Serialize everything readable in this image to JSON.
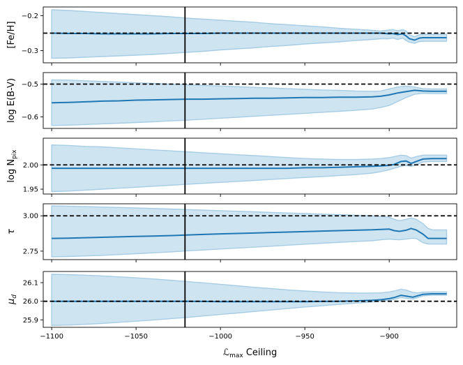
{
  "chart_data": {
    "type": "line",
    "xlabel_main": "ℒ",
    "xlabel_sub": "max",
    "xlabel_rest": " Ceiling",
    "xlim": [
      -1105,
      -860
    ],
    "xticks": [
      -1100,
      -1050,
      -1000,
      -950,
      -900
    ],
    "xtick_labels": [
      "−1100",
      "−1050",
      "−1000",
      "−950",
      "−900"
    ],
    "vline_x": -1021,
    "colors": {
      "line": "#1f77b4",
      "band": "#a6cde5",
      "reference": "#000000"
    },
    "panels": [
      {
        "name": "feh",
        "ylabel_main": "[Fe/H]",
        "ylabel_sub": "",
        "ylabel_math": false,
        "ylim": [
          -0.335,
          -0.175
        ],
        "yticks": [
          -0.3,
          -0.2
        ],
        "ytick_labels": [
          "−0.3",
          "−0.2"
        ],
        "truth": -0.25,
        "series": {
          "x": [
            -1100,
            -1090,
            -1080,
            -1070,
            -1060,
            -1050,
            -1040,
            -1030,
            -1020,
            -1010,
            -1000,
            -990,
            -980,
            -970,
            -960,
            -950,
            -940,
            -930,
            -920,
            -910,
            -905,
            -900,
            -898,
            -895,
            -892,
            -890,
            -888,
            -885,
            -882,
            -880,
            -875,
            -870,
            -866
          ],
          "mean": [
            -0.25,
            -0.251,
            -0.251,
            -0.252,
            -0.252,
            -0.252,
            -0.252,
            -0.251,
            -0.251,
            -0.251,
            -0.25,
            -0.25,
            -0.25,
            -0.25,
            -0.25,
            -0.25,
            -0.25,
            -0.25,
            -0.25,
            -0.25,
            -0.25,
            -0.252,
            -0.251,
            -0.254,
            -0.252,
            -0.258,
            -0.266,
            -0.27,
            -0.264,
            -0.263,
            -0.263,
            -0.263,
            -0.263
          ],
          "lower": [
            -0.322,
            -0.321,
            -0.319,
            -0.317,
            -0.315,
            -0.313,
            -0.311,
            -0.308,
            -0.305,
            -0.302,
            -0.298,
            -0.295,
            -0.292,
            -0.288,
            -0.285,
            -0.281,
            -0.278,
            -0.275,
            -0.271,
            -0.268,
            -0.266,
            -0.266,
            -0.264,
            -0.268,
            -0.264,
            -0.271,
            -0.276,
            -0.279,
            -0.274,
            -0.273,
            -0.273,
            -0.273,
            -0.273
          ],
          "upper": [
            -0.183,
            -0.185,
            -0.188,
            -0.191,
            -0.194,
            -0.197,
            -0.2,
            -0.203,
            -0.207,
            -0.21,
            -0.213,
            -0.216,
            -0.219,
            -0.223,
            -0.226,
            -0.229,
            -0.232,
            -0.236,
            -0.239,
            -0.242,
            -0.244,
            -0.241,
            -0.24,
            -0.243,
            -0.24,
            -0.244,
            -0.255,
            -0.26,
            -0.254,
            -0.253,
            -0.253,
            -0.253,
            -0.253
          ]
        }
      },
      {
        "name": "ebv",
        "ylabel_main": "log E(B-V)",
        "ylabel_sub": "",
        "ylabel_math": false,
        "ylim": [
          -0.635,
          -0.465
        ],
        "yticks": [
          -0.6,
          -0.5
        ],
        "ytick_labels": [
          "−0.6",
          "−0.5"
        ],
        "truth": -0.5,
        "series": {
          "x": [
            -1100,
            -1090,
            -1080,
            -1070,
            -1060,
            -1050,
            -1040,
            -1030,
            -1020,
            -1010,
            -1000,
            -990,
            -980,
            -970,
            -960,
            -950,
            -940,
            -930,
            -920,
            -910,
            -905,
            -900,
            -895,
            -890,
            -885,
            -880,
            -875,
            -870,
            -866
          ],
          "mean": [
            -0.557,
            -0.556,
            -0.554,
            -0.552,
            -0.551,
            -0.549,
            -0.548,
            -0.547,
            -0.546,
            -0.546,
            -0.545,
            -0.544,
            -0.543,
            -0.543,
            -0.542,
            -0.541,
            -0.541,
            -0.54,
            -0.54,
            -0.539,
            -0.537,
            -0.533,
            -0.527,
            -0.523,
            -0.519,
            -0.521,
            -0.522,
            -0.522,
            -0.522
          ],
          "lower": [
            -0.626,
            -0.625,
            -0.623,
            -0.621,
            -0.619,
            -0.617,
            -0.615,
            -0.612,
            -0.61,
            -0.607,
            -0.604,
            -0.601,
            -0.598,
            -0.595,
            -0.592,
            -0.589,
            -0.586,
            -0.583,
            -0.58,
            -0.576,
            -0.571,
            -0.565,
            -0.553,
            -0.541,
            -0.531,
            -0.528,
            -0.529,
            -0.529,
            -0.529
          ],
          "upper": [
            -0.487,
            -0.488,
            -0.49,
            -0.492,
            -0.494,
            -0.496,
            -0.498,
            -0.5,
            -0.502,
            -0.504,
            -0.506,
            -0.508,
            -0.51,
            -0.512,
            -0.514,
            -0.516,
            -0.518,
            -0.519,
            -0.521,
            -0.522,
            -0.521,
            -0.515,
            -0.509,
            -0.506,
            -0.509,
            -0.514,
            -0.515,
            -0.515,
            -0.515
          ]
        }
      },
      {
        "name": "npix",
        "ylabel_main": "log N",
        "ylabel_sub": "pix",
        "ylabel_math": false,
        "ylim": [
          1.94,
          2.055
        ],
        "yticks": [
          1.95,
          2.0
        ],
        "ytick_labels": [
          "1.95",
          "2.00"
        ],
        "truth": 2.0,
        "series": {
          "x": [
            -1100,
            -1090,
            -1080,
            -1070,
            -1060,
            -1050,
            -1040,
            -1030,
            -1020,
            -1010,
            -1000,
            -990,
            -980,
            -970,
            -960,
            -950,
            -940,
            -930,
            -920,
            -910,
            -905,
            -900,
            -897,
            -893,
            -890,
            -887,
            -884,
            -880,
            -875,
            -870,
            -866
          ],
          "mean": [
            1.993,
            1.993,
            1.993,
            1.993,
            1.993,
            1.993,
            1.993,
            1.993,
            1.993,
            1.993,
            1.993,
            1.993,
            1.993,
            1.993,
            1.993,
            1.994,
            1.994,
            1.995,
            1.996,
            1.997,
            1.998,
            1.999,
            2.001,
            2.007,
            2.008,
            2.003,
            2.007,
            2.012,
            2.013,
            2.013,
            2.013
          ],
          "lower": [
            1.945,
            1.946,
            1.948,
            1.95,
            1.952,
            1.954,
            1.956,
            1.958,
            1.96,
            1.962,
            1.964,
            1.966,
            1.968,
            1.97,
            1.972,
            1.974,
            1.976,
            1.978,
            1.98,
            1.983,
            1.986,
            1.99,
            1.993,
            1.997,
            1.999,
            1.997,
            2.0,
            2.006,
            2.007,
            2.007,
            2.007
          ],
          "upper": [
            2.041,
            2.04,
            2.038,
            2.037,
            2.035,
            2.033,
            2.031,
            2.029,
            2.027,
            2.025,
            2.023,
            2.021,
            2.019,
            2.017,
            2.015,
            2.013,
            2.012,
            2.011,
            2.011,
            2.012,
            2.013,
            2.015,
            2.017,
            2.02,
            2.019,
            2.014,
            2.017,
            2.02,
            2.02,
            2.02,
            2.02
          ]
        }
      },
      {
        "name": "tau",
        "ylabel_main": "τ",
        "ylabel_sub": "",
        "ylabel_math": true,
        "ylim": [
          2.69,
          3.085
        ],
        "yticks": [
          2.75,
          3.0
        ],
        "ytick_labels": [
          "2.75",
          "3.00"
        ],
        "truth": 3.0,
        "series": {
          "x": [
            -1100,
            -1090,
            -1080,
            -1070,
            -1060,
            -1050,
            -1040,
            -1030,
            -1020,
            -1010,
            -1000,
            -990,
            -980,
            -970,
            -960,
            -950,
            -940,
            -930,
            -920,
            -910,
            -905,
            -900,
            -897,
            -894,
            -890,
            -887,
            -884,
            -880,
            -877,
            -874,
            -870,
            -866
          ],
          "mean": [
            2.84,
            2.842,
            2.845,
            2.848,
            2.851,
            2.854,
            2.857,
            2.86,
            2.864,
            2.868,
            2.872,
            2.875,
            2.878,
            2.882,
            2.885,
            2.888,
            2.892,
            2.895,
            2.898,
            2.901,
            2.904,
            2.906,
            2.895,
            2.89,
            2.898,
            2.91,
            2.9,
            2.87,
            2.84,
            2.84,
            2.84,
            2.84
          ],
          "lower": [
            2.71,
            2.712,
            2.716,
            2.72,
            2.726,
            2.732,
            2.738,
            2.744,
            2.752,
            2.758,
            2.765,
            2.772,
            2.778,
            2.785,
            2.792,
            2.799,
            2.806,
            2.812,
            2.818,
            2.824,
            2.83,
            2.835,
            2.832,
            2.83,
            2.835,
            2.84,
            2.84,
            2.81,
            2.8,
            2.8,
            2.8,
            2.8
          ],
          "upper": [
            3.07,
            3.068,
            3.065,
            3.062,
            3.059,
            3.056,
            3.052,
            3.048,
            3.044,
            3.04,
            3.036,
            3.032,
            3.028,
            3.024,
            3.02,
            3.016,
            3.012,
            3.008,
            3.004,
            3.0,
            2.995,
            2.99,
            2.975,
            2.965,
            2.975,
            2.985,
            2.975,
            2.945,
            2.91,
            2.9,
            2.9,
            2.9
          ]
        }
      },
      {
        "name": "mud",
        "ylabel_main": "μ",
        "ylabel_sub": "d",
        "ylabel_math": true,
        "ylim": [
          25.86,
          26.16
        ],
        "yticks": [
          25.9,
          26.0,
          26.1
        ],
        "ytick_labels": [
          "25.9",
          "26.0",
          "26.1"
        ],
        "truth": 26.0,
        "series": {
          "x": [
            -1100,
            -1090,
            -1080,
            -1070,
            -1060,
            -1050,
            -1040,
            -1030,
            -1020,
            -1010,
            -1000,
            -990,
            -980,
            -970,
            -960,
            -950,
            -940,
            -930,
            -920,
            -910,
            -905,
            -900,
            -897,
            -893,
            -890,
            -886,
            -883,
            -880,
            -875,
            -870,
            -866
          ],
          "mean": [
            26.0,
            26.0,
            26.0,
            26.0,
            26.0,
            26.0,
            26.0,
            26.0,
            26.0,
            25.999,
            25.998,
            25.998,
            25.998,
            25.998,
            25.998,
            25.998,
            25.999,
            26.0,
            26.002,
            26.005,
            26.008,
            26.014,
            26.02,
            26.032,
            26.028,
            26.022,
            26.03,
            26.037,
            26.04,
            26.04,
            26.04
          ],
          "lower": [
            25.87,
            25.872,
            25.876,
            25.881,
            25.887,
            25.893,
            25.899,
            25.906,
            25.913,
            25.921,
            25.929,
            25.937,
            25.945,
            25.953,
            25.961,
            25.969,
            25.976,
            25.983,
            25.99,
            25.996,
            26.0,
            26.005,
            26.01,
            26.02,
            26.016,
            26.012,
            26.02,
            26.029,
            26.032,
            26.032,
            26.032
          ],
          "upper": [
            26.145,
            26.143,
            26.14,
            26.136,
            26.131,
            26.126,
            26.12,
            26.113,
            26.106,
            26.099,
            26.091,
            26.083,
            26.075,
            26.068,
            26.061,
            26.055,
            26.05,
            26.046,
            26.044,
            26.044,
            26.045,
            26.05,
            26.055,
            26.065,
            26.06,
            26.048,
            26.045,
            26.049,
            26.05,
            26.05,
            26.05
          ]
        }
      }
    ]
  }
}
